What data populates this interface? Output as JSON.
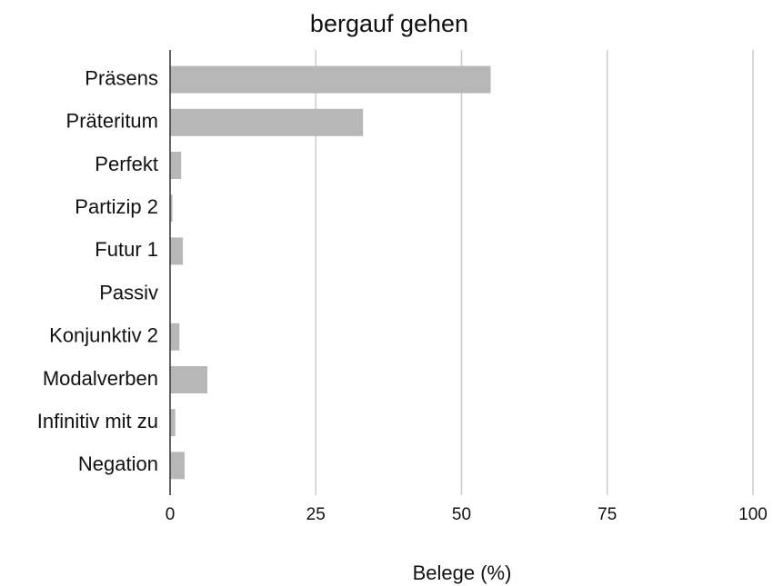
{
  "chart_data": {
    "type": "bar",
    "orientation": "horizontal",
    "title": "bergauf gehen",
    "x_label": "Belege (%)",
    "categories": [
      "Präsens",
      "Präteritum",
      "Perfekt",
      "Partizip 2",
      "Futur 1",
      "Passiv",
      "Konjunktiv 2",
      "Modalverben",
      "Infinitiv mit zu",
      "Negation"
    ],
    "values": [
      55,
      33.1,
      1.9,
      0.4,
      2.2,
      0,
      1.6,
      6.4,
      0.9,
      2.5
    ],
    "color": "#b7b7b7",
    "xlim": [
      0,
      100
    ],
    "xticks": [
      0,
      25,
      50,
      75,
      100
    ],
    "grid": true
  }
}
